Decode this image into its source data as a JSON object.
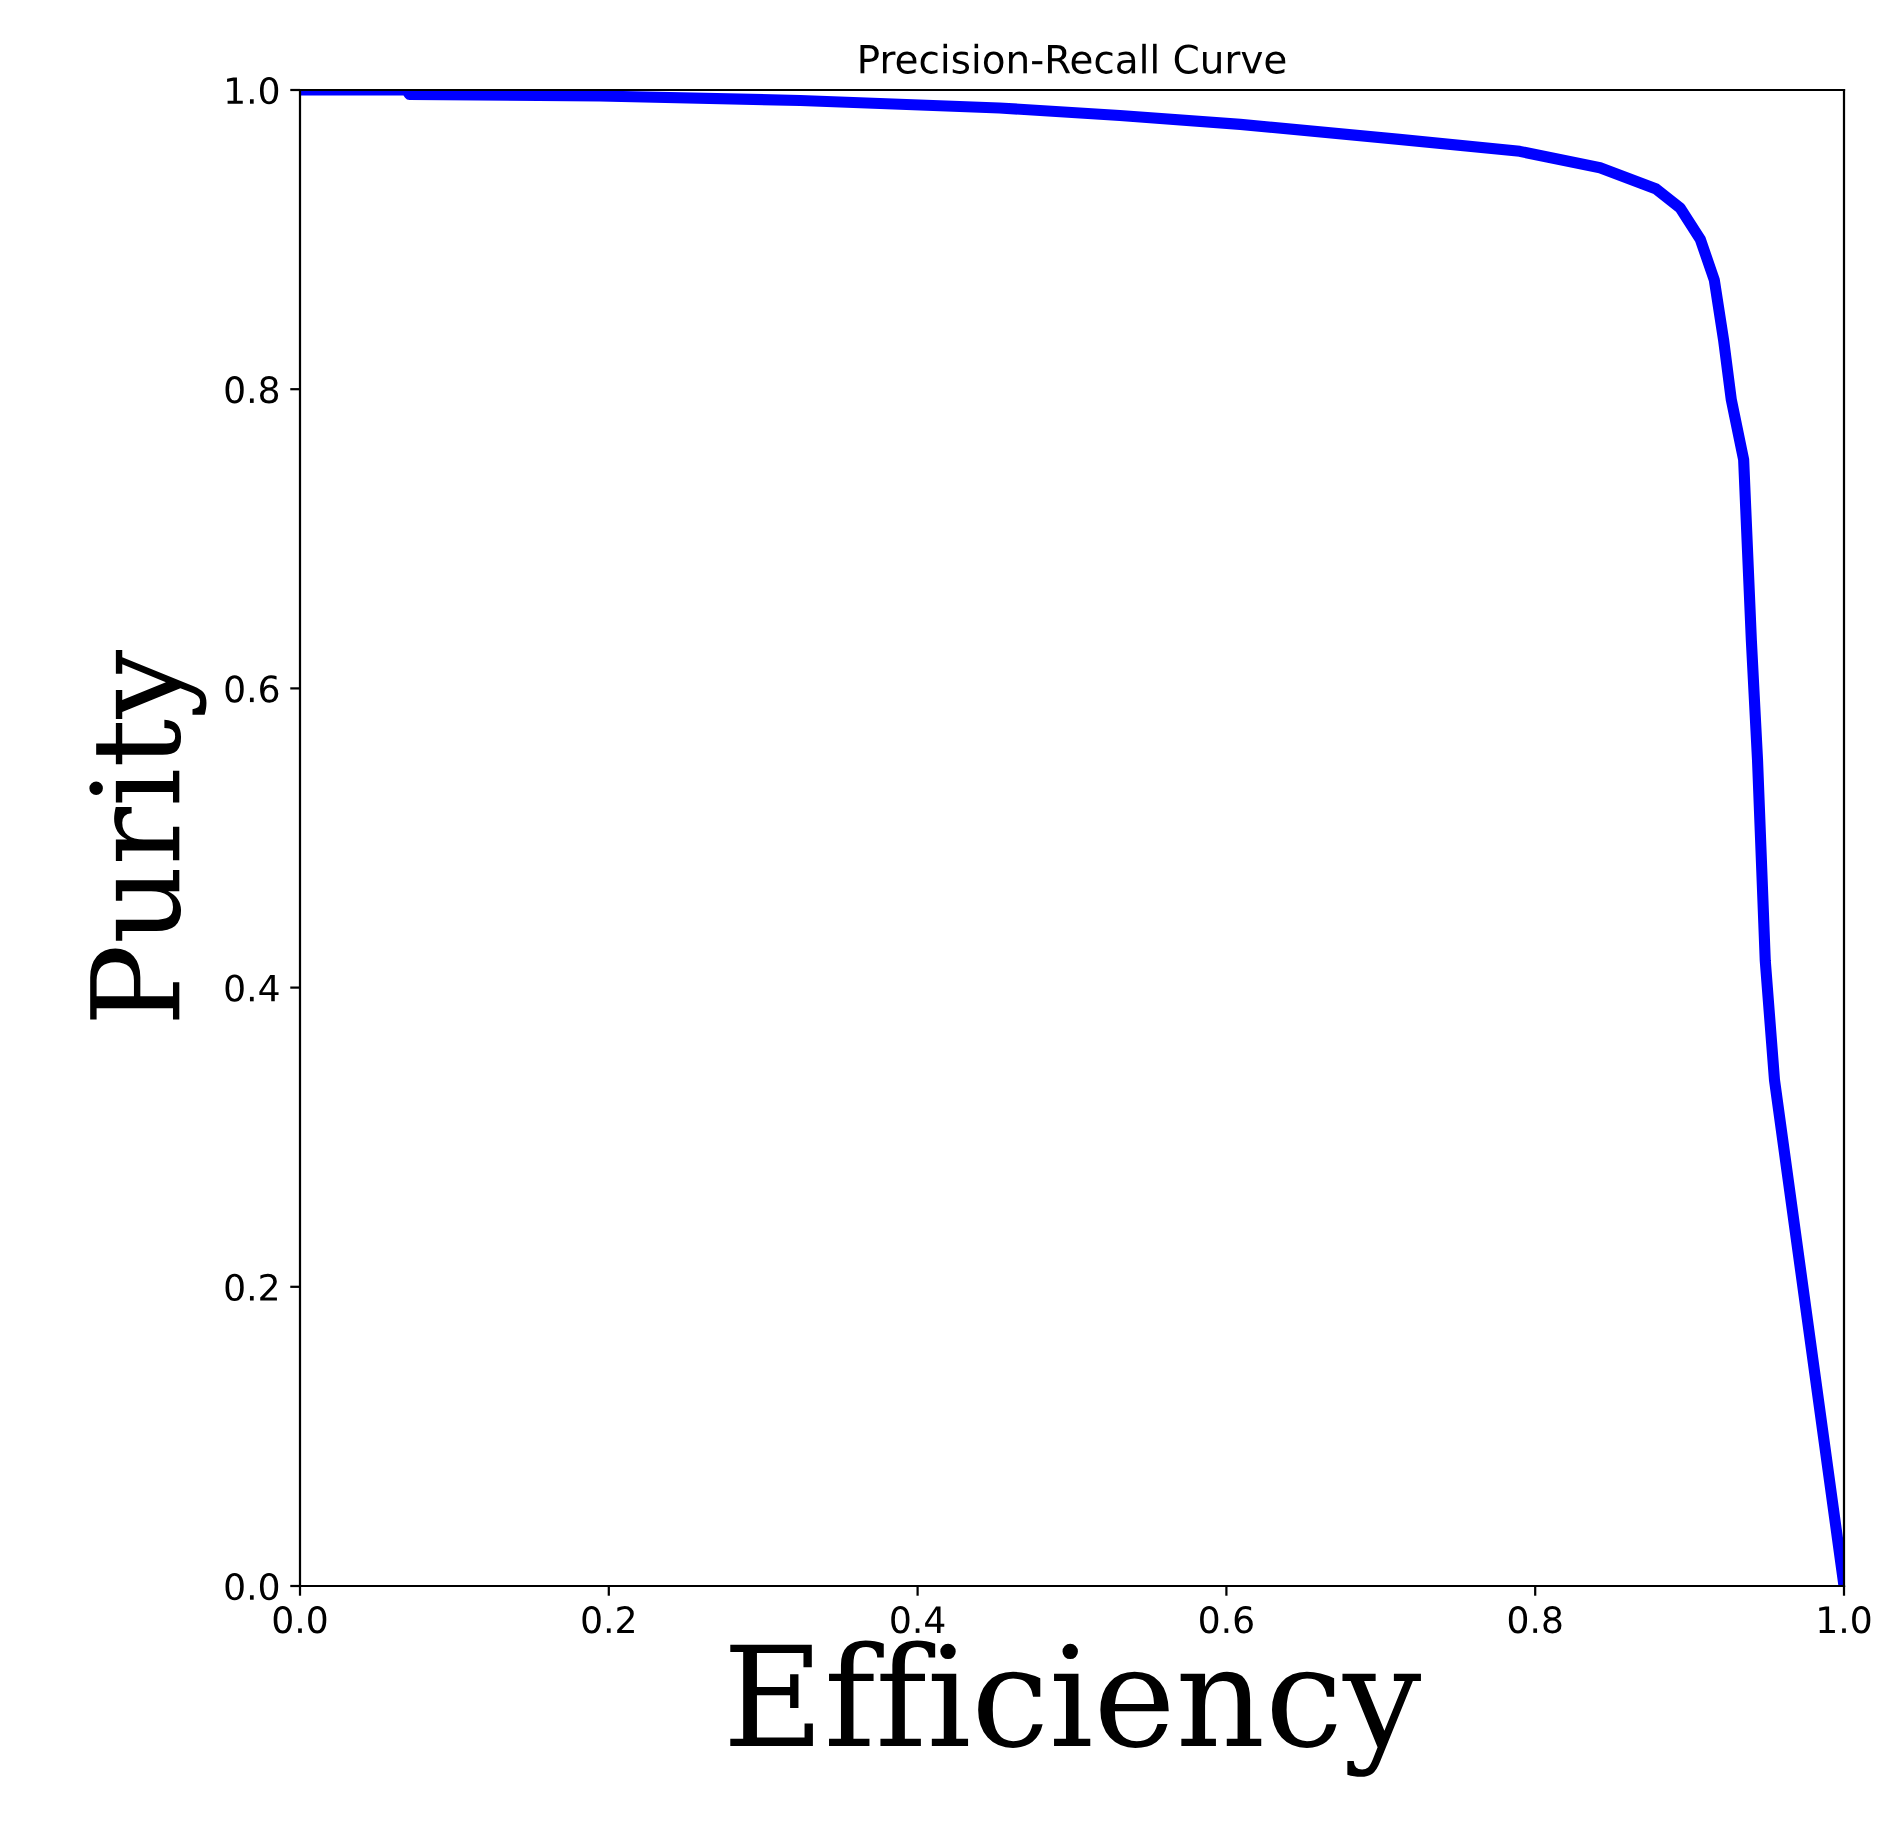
{
  "chart_data": {
    "type": "line",
    "title": "Precision-Recall Curve",
    "xlabel": "Efficiency",
    "ylabel": "Purity",
    "x": [
      0,
      0.069,
      0.071,
      0.194,
      0.324,
      0.453,
      0.531,
      0.609,
      0.712,
      0.79,
      0.842,
      0.878,
      0.894,
      0.907,
      0.916,
      0.922,
      0.927,
      0.935,
      0.94,
      0.944,
      0.949,
      0.955,
      1.0
    ],
    "series": [
      {
        "color": "#0000ff",
        "values": [
          1.0,
          1.0,
          0.997,
          0.996,
          0.993,
          0.988,
          0.983,
          0.977,
          0.967,
          0.959,
          0.948,
          0.934,
          0.921,
          0.9,
          0.873,
          0.833,
          0.793,
          0.753,
          0.632,
          0.552,
          0.418,
          0.338,
          0.0
        ]
      }
    ],
    "xlim": [
      0,
      1
    ],
    "ylim": [
      0,
      1
    ],
    "xticks": [
      {
        "value": 0,
        "label": "0.0"
      },
      0.2,
      0.4,
      0.6,
      0.8,
      {
        "value": 1,
        "label": "1.0"
      }
    ],
    "yticks": [
      {
        "value": 0,
        "label": "0.0"
      },
      0.2,
      0.4,
      0.6,
      0.8,
      {
        "value": 1,
        "label": "1.0"
      }
    ],
    "grid": false,
    "marker": "none",
    "line_style": "solid"
  }
}
